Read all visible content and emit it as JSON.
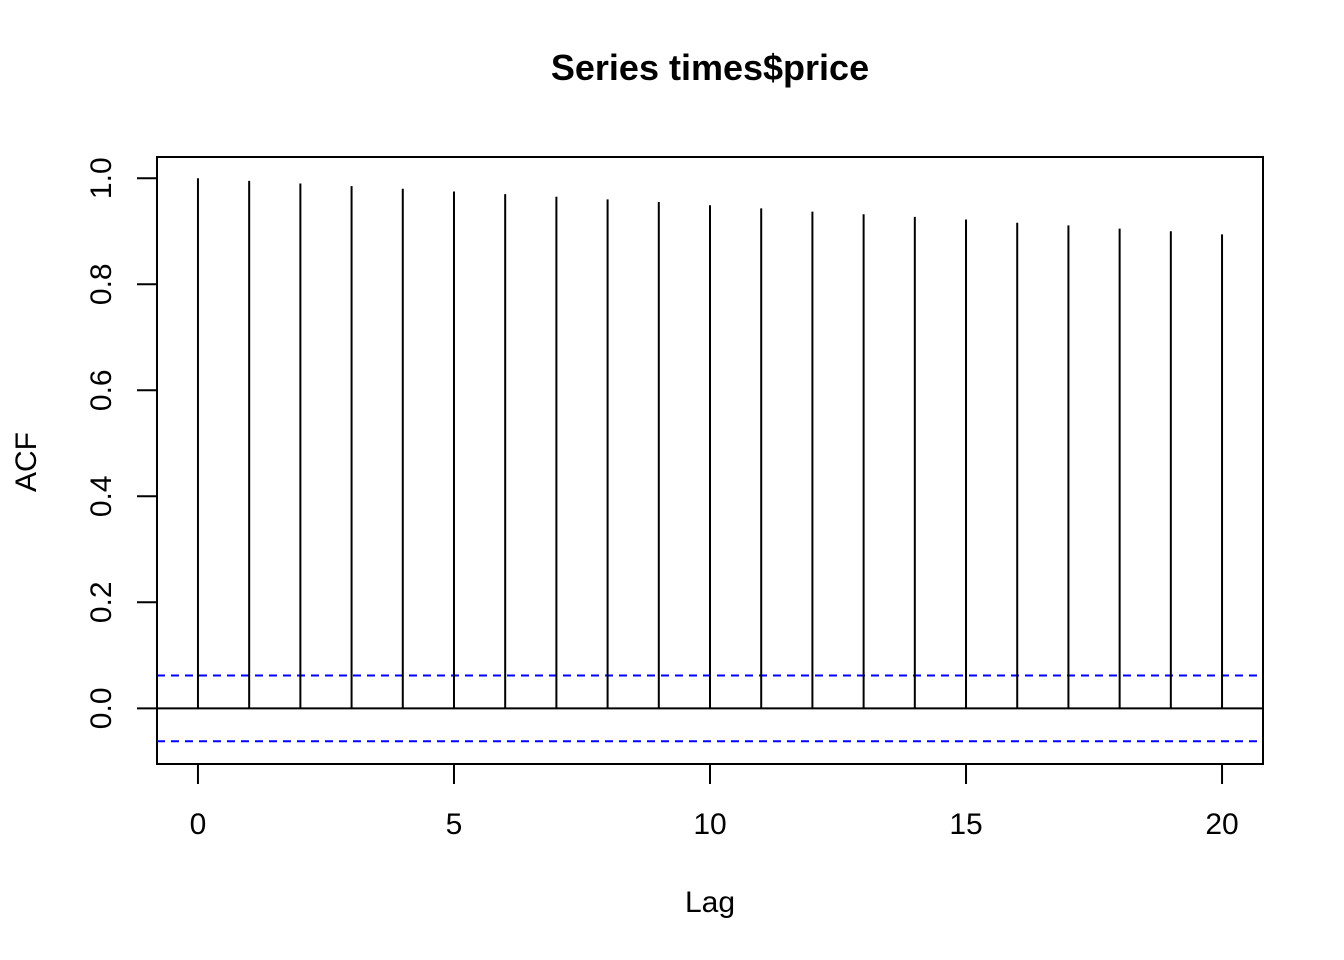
{
  "chart_data": {
    "type": "bar",
    "title": "Series  times$price",
    "xlabel": "Lag",
    "ylabel": "ACF",
    "x": [
      0,
      1,
      2,
      3,
      4,
      5,
      6,
      7,
      8,
      9,
      10,
      11,
      12,
      13,
      14,
      15,
      16,
      17,
      18,
      19,
      20
    ],
    "values": [
      1.0,
      0.995,
      0.99,
      0.985,
      0.98,
      0.975,
      0.97,
      0.965,
      0.96,
      0.955,
      0.949,
      0.943,
      0.937,
      0.932,
      0.927,
      0.922,
      0.916,
      0.911,
      0.905,
      0.9,
      0.894
    ],
    "xlim": [
      -0.8,
      20.8
    ],
    "ylim": [
      -0.105,
      1.04
    ],
    "xticks": [
      0,
      5,
      10,
      15,
      20
    ],
    "yticks": [
      0.0,
      0.2,
      0.4,
      0.6,
      0.8,
      1.0
    ],
    "xtick_labels": [
      "0",
      "5",
      "10",
      "15",
      "20"
    ],
    "ytick_labels": [
      "0.0",
      "0.2",
      "0.4",
      "0.6",
      "0.8",
      "1.0"
    ],
    "confidence_bounds": [
      0.062,
      -0.062
    ],
    "bar_color": "#000000",
    "bound_color": "#0000ff",
    "grid": false
  }
}
